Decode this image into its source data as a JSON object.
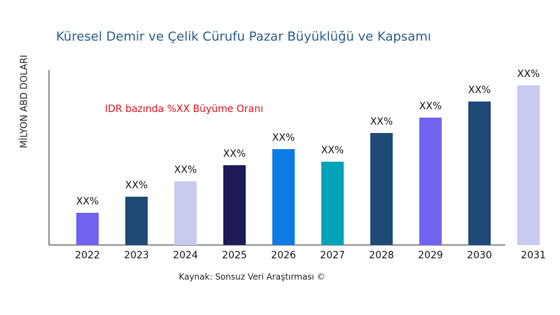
{
  "chart_data": {
    "type": "bar",
    "title": "Küresel Demir ve Çelik Cürufu Pazar Büyüklüğü ve Kapsamı",
    "y_label": "MİLYON ABD DOLARI",
    "annotation": "IDR bazında %XX Büyüme Oranı",
    "source": "Kaynak: Sonsuz Veri Araştırması ©",
    "categories": [
      "2022",
      "2023",
      "2024",
      "2025",
      "2026",
      "2027",
      "2028",
      "2029",
      "2030",
      "2031"
    ],
    "values": [
      46,
      69,
      91,
      114,
      137,
      119,
      160,
      182,
      205,
      228
    ],
    "value_labels": [
      "XX%",
      "XX%",
      "XX%",
      "XX%",
      "XX%",
      "XX%",
      "XX%",
      "XX%",
      "XX%",
      "XX%"
    ],
    "colors": [
      "#7163f0",
      "#1f4a78",
      "#c8caf0",
      "#1e1a58",
      "#0f7be6",
      "#00a3b8",
      "#1f4a78",
      "#7163f0",
      "#1f4a78",
      "#c8caf0"
    ]
  }
}
